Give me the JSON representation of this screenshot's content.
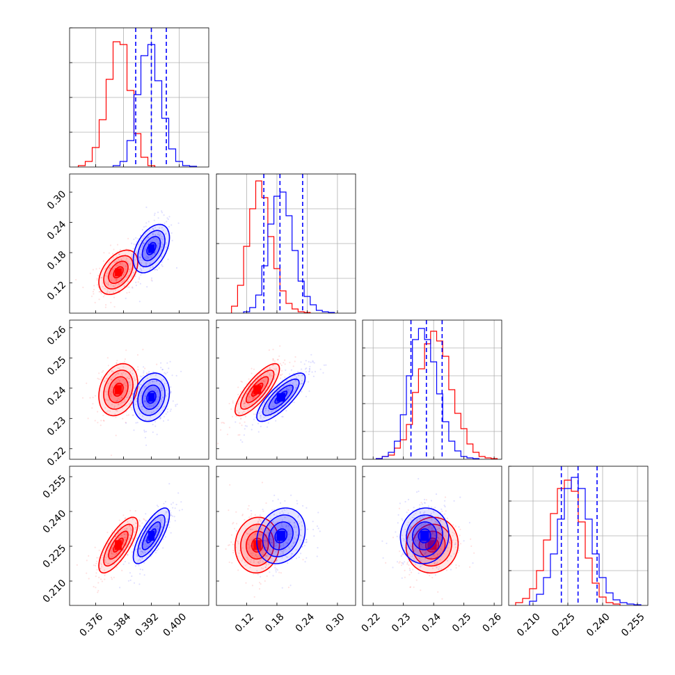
{
  "chart_data": {
    "type": "corner",
    "title": "",
    "series": [
      {
        "name": "",
        "color": "#ff0000"
      },
      {
        "name": "",
        "color": "#0000ff"
      }
    ],
    "params": [
      {
        "range": [
          0.3685,
          0.4085
        ],
        "ticks": [
          0.376,
          0.384,
          0.392,
          0.4
        ],
        "tick_labels": [
          "0.376",
          "0.384",
          "0.392",
          "0.400"
        ]
      },
      {
        "range": [
          0.06,
          0.336
        ],
        "ticks": [
          0.12,
          0.18,
          0.24,
          0.3
        ],
        "tick_labels": [
          "0.12",
          "0.18",
          "0.24",
          "0.30"
        ]
      },
      {
        "range": [
          0.2165,
          0.2625
        ],
        "ticks": [
          0.22,
          0.23,
          0.24,
          0.25,
          0.26
        ],
        "tick_labels": [
          "0.22",
          "0.23",
          "0.24",
          "0.25",
          "0.26"
        ]
      },
      {
        "range": [
          0.1995,
          0.2595
        ],
        "ticks": [
          0.21,
          0.225,
          0.24,
          0.255
        ],
        "tick_labels": [
          "0.210",
          "0.225",
          "0.240",
          "0.255"
        ]
      }
    ],
    "marginal_ticks": [
      [
        0.25,
        0.5,
        0.75,
        1.0
      ],
      [
        0.25,
        0.5,
        0.75,
        1.0
      ],
      [
        0.2,
        0.4,
        0.6,
        0.8
      ],
      [
        0.25,
        0.5,
        0.75,
        1.0
      ]
    ],
    "marginals": [
      {
        "bin_width": 0.002,
        "red": {
          "x": [
            0.372,
            0.374,
            0.376,
            0.378,
            0.38,
            0.382,
            0.384,
            0.386,
            0.388,
            0.39,
            0.392
          ],
          "values": [
            0.01,
            0.04,
            0.14,
            0.34,
            0.63,
            0.9,
            0.88,
            0.55,
            0.24,
            0.07,
            0.01
          ]
        },
        "blue": {
          "x": [
            0.382,
            0.384,
            0.386,
            0.388,
            0.39,
            0.392,
            0.394,
            0.396,
            0.398,
            0.4,
            0.402,
            0.404
          ],
          "values": [
            0.01,
            0.04,
            0.19,
            0.52,
            0.8,
            0.88,
            0.62,
            0.35,
            0.13,
            0.04,
            0.01,
            0.005
          ]
        },
        "quantiles": [
          0.3875,
          0.392,
          0.3963
        ]
      },
      {
        "bin_width": 0.012,
        "red": {
          "x": [
            0.096,
            0.108,
            0.12,
            0.132,
            0.144,
            0.156,
            0.168,
            0.18,
            0.192,
            0.204,
            0.216,
            0.228,
            0.24
          ],
          "values": [
            0.05,
            0.2,
            0.48,
            0.75,
            0.95,
            0.83,
            0.55,
            0.32,
            0.16,
            0.07,
            0.03,
            0.01,
            0.005
          ]
        },
        "blue": {
          "x": [
            0.12,
            0.132,
            0.144,
            0.156,
            0.168,
            0.18,
            0.192,
            0.204,
            0.216,
            0.228,
            0.24,
            0.252,
            0.264,
            0.276,
            0.288
          ],
          "values": [
            0.01,
            0.04,
            0.13,
            0.34,
            0.64,
            0.84,
            0.87,
            0.7,
            0.45,
            0.23,
            0.12,
            0.06,
            0.02,
            0.01,
            0.005
          ]
        },
        "quantiles": [
          0.154,
          0.186,
          0.231
        ]
      },
      {
        "bin_width": 0.002,
        "red": {
          "x": [
            0.222,
            0.224,
            0.226,
            0.228,
            0.23,
            0.232,
            0.234,
            0.236,
            0.238,
            0.24,
            0.242,
            0.244,
            0.246,
            0.248,
            0.25,
            0.252,
            0.254,
            0.256,
            0.258,
            0.26
          ],
          "values": [
            0.005,
            0.02,
            0.03,
            0.08,
            0.14,
            0.25,
            0.48,
            0.65,
            0.83,
            0.92,
            0.85,
            0.74,
            0.5,
            0.33,
            0.22,
            0.11,
            0.05,
            0.02,
            0.01,
            0.005
          ]
        },
        "blue": {
          "x": [
            0.222,
            0.224,
            0.226,
            0.228,
            0.23,
            0.232,
            0.234,
            0.236,
            0.238,
            0.24,
            0.242,
            0.244,
            0.246,
            0.248,
            0.25,
            0.252,
            0.254
          ],
          "values": [
            0.005,
            0.02,
            0.05,
            0.13,
            0.32,
            0.6,
            0.86,
            0.94,
            0.86,
            0.7,
            0.47,
            0.27,
            0.13,
            0.06,
            0.02,
            0.01,
            0.005
          ]
        },
        "quantiles": [
          0.2325,
          0.2376,
          0.2428
        ]
      },
      {
        "bin_width": 0.003,
        "red": {
          "x": [
            0.204,
            0.207,
            0.21,
            0.213,
            0.216,
            0.219,
            0.222,
            0.225,
            0.228,
            0.231,
            0.234,
            0.237,
            0.24,
            0.243,
            0.246
          ],
          "values": [
            0.02,
            0.05,
            0.12,
            0.25,
            0.47,
            0.66,
            0.84,
            0.9,
            0.82,
            0.6,
            0.34,
            0.16,
            0.06,
            0.02,
            0.01
          ]
        },
        "blue": {
          "x": [
            0.21,
            0.213,
            0.216,
            0.219,
            0.222,
            0.225,
            0.228,
            0.231,
            0.234,
            0.237,
            0.24,
            0.243,
            0.246,
            0.249,
            0.252,
            0.255
          ],
          "values": [
            0.03,
            0.08,
            0.2,
            0.37,
            0.62,
            0.84,
            0.92,
            0.84,
            0.62,
            0.37,
            0.2,
            0.09,
            0.04,
            0.02,
            0.01,
            0.005
          ]
        },
        "quantiles": [
          0.2222,
          0.2294,
          0.2376
        ]
      }
    ],
    "joint": [
      {
        "row": 1,
        "col": 0,
        "red": {
          "mean": [
            0.3825,
            0.141
          ],
          "sd": [
            0.0028,
            0.022
          ],
          "rho": 0.45
        },
        "blue": {
          "mean": [
            0.392,
            0.188
          ],
          "sd": [
            0.0026,
            0.024
          ],
          "rho": 0.45
        }
      },
      {
        "row": 2,
        "col": 0,
        "red": {
          "mean": [
            0.3825,
            0.2395
          ],
          "sd": [
            0.0028,
            0.0043
          ],
          "rho": 0.25
        },
        "blue": {
          "mean": [
            0.392,
            0.237
          ],
          "sd": [
            0.0026,
            0.004
          ],
          "rho": 0.2
        }
      },
      {
        "row": 2,
        "col": 1,
        "red": {
          "mean": [
            0.141,
            0.2395
          ],
          "sd": [
            0.022,
            0.0043
          ],
          "rho": 0.8
        },
        "blue": {
          "mean": [
            0.188,
            0.237
          ],
          "sd": [
            0.024,
            0.004
          ],
          "rho": 0.8
        }
      },
      {
        "row": 3,
        "col": 0,
        "red": {
          "mean": [
            0.3825,
            0.2255
          ],
          "sd": [
            0.0028,
            0.006
          ],
          "rho": 0.75
        },
        "blue": {
          "mean": [
            0.392,
            0.2295
          ],
          "sd": [
            0.0026,
            0.006
          ],
          "rho": 0.75
        }
      },
      {
        "row": 3,
        "col": 1,
        "red": {
          "mean": [
            0.141,
            0.2255
          ],
          "sd": [
            0.022,
            0.006
          ],
          "rho": 0.05
        },
        "blue": {
          "mean": [
            0.188,
            0.2295
          ],
          "sd": [
            0.024,
            0.006
          ],
          "rho": 0.2
        }
      },
      {
        "row": 3,
        "col": 2,
        "red": {
          "mean": [
            0.2395,
            0.2255
          ],
          "sd": [
            0.0043,
            0.006
          ],
          "rho": 0.05
        },
        "blue": {
          "mean": [
            0.237,
            0.2295
          ],
          "sd": [
            0.004,
            0.006
          ],
          "rho": 0.05
        }
      }
    ],
    "contour_levels_sigma": [
      0.5,
      1.0,
      1.5,
      2.0
    ],
    "grid": true
  }
}
